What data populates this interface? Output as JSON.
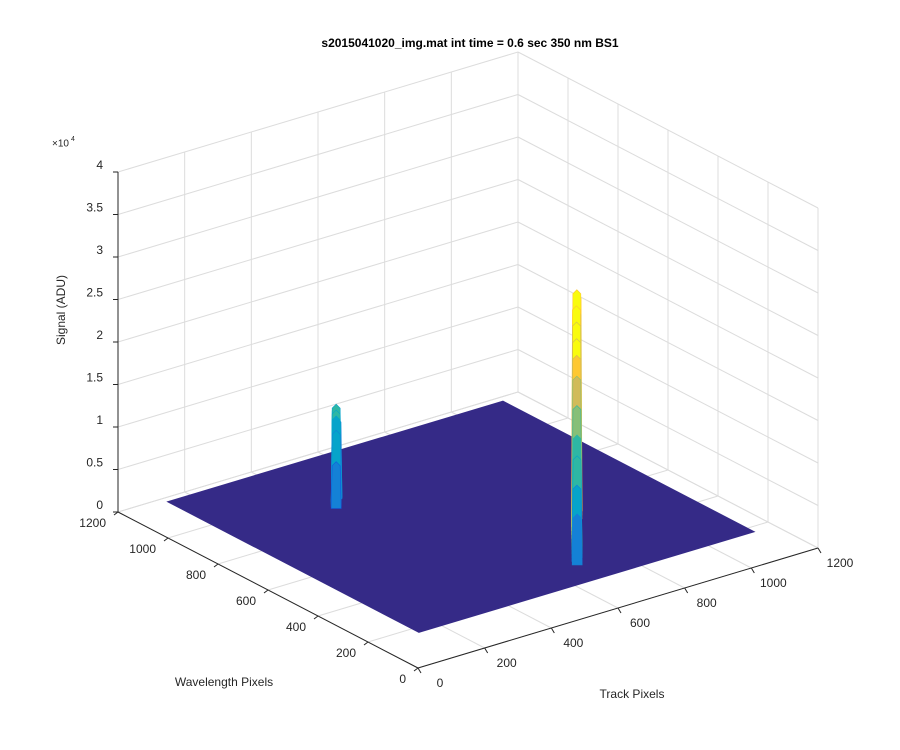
{
  "chart_data": {
    "type": "surface3d",
    "title": "s2015041020_img.mat int time = 0.6 sec  350 nm BS1",
    "xlabel": "Track Pixels",
    "ylabel": "Wavelength Pixels",
    "zlabel": "Signal (ADU)",
    "z_exponent_label": "×10",
    "z_exponent_power": "4",
    "xlim": [
      0,
      1200
    ],
    "ylim": [
      0,
      1200
    ],
    "zlim": [
      0,
      40000
    ],
    "xticks": [
      0,
      200,
      400,
      600,
      800,
      1000,
      1200
    ],
    "yticks": [
      0,
      200,
      400,
      600,
      800,
      1000,
      1200
    ],
    "zticks": [
      0,
      {
        "value": 5000,
        "label": "0.5"
      },
      {
        "value": 10000,
        "label": "1"
      },
      {
        "value": 15000,
        "label": "1.5"
      },
      {
        "value": 20000,
        "label": "2"
      },
      {
        "value": 25000,
        "label": "2.5"
      },
      {
        "value": 30000,
        "label": "3"
      },
      {
        "value": 35000,
        "label": "3.5"
      },
      {
        "value": 40000,
        "label": "4"
      }
    ],
    "grid": true,
    "surface_color": "#352a87",
    "surface_extent": {
      "x": [
        130,
        1140
      ],
      "y": [
        170,
        1180
      ]
    },
    "colormap": [
      "#352a87",
      "#0f5cdd",
      "#1481d6",
      "#06a4ca",
      "#2eb7a4",
      "#87bf77",
      "#d1bb59",
      "#fec832",
      "#f9fb0e"
    ],
    "series": [
      {
        "x": [
          470,
          465,
          458,
          452,
          446,
          440,
          434,
          428
        ],
        "y": [
          950,
          944,
          938,
          930,
          922,
          914,
          906,
          898
        ],
        "values": [
          6000,
          9500,
          11000,
          11500,
          11000,
          10500,
          9000,
          5500
        ]
      },
      {
        "x": [
          877,
          862,
          848,
          833,
          818,
          804,
          790,
          776,
          762,
          748,
          734,
          720,
          706,
          692,
          680
        ],
        "y": [
          533,
          514,
          495,
          476,
          457,
          438,
          419,
          400,
          381,
          362,
          343,
          324,
          305,
          287,
          270
        ],
        "values": [
          25500,
          26500,
          24500,
          25000,
          26000,
          24000,
          25000,
          23500,
          22000,
          20000,
          17000,
          14000,
          12000,
          9000,
          6000
        ]
      }
    ]
  }
}
